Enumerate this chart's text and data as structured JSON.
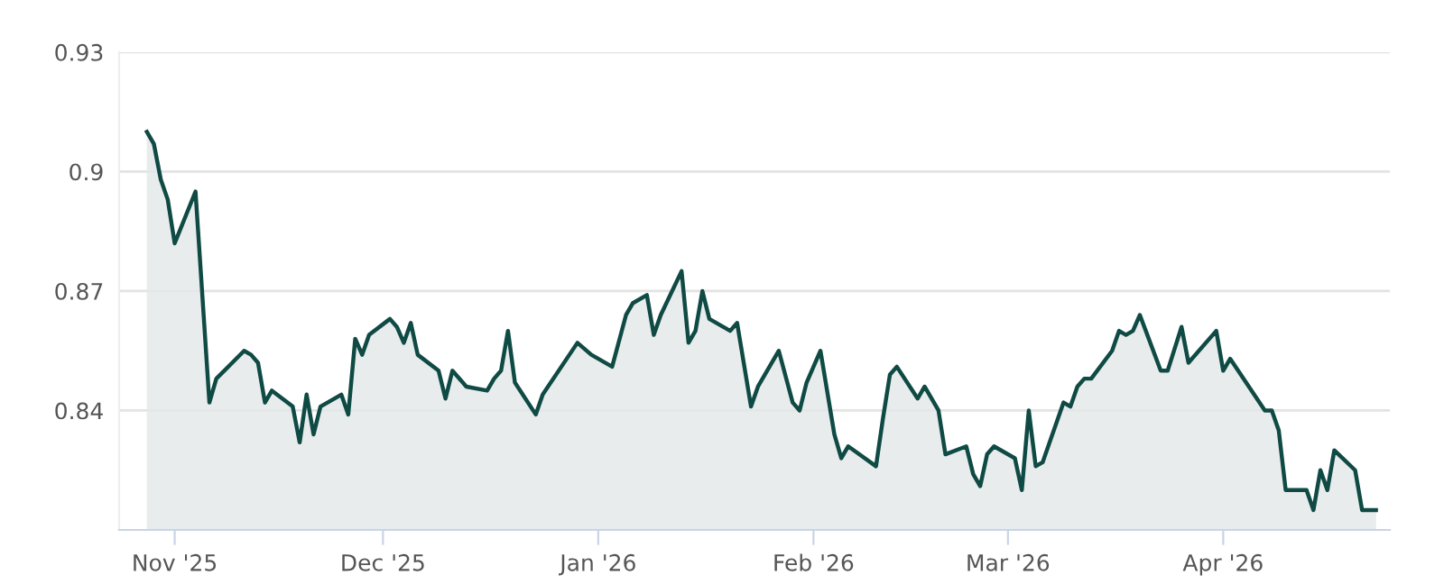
{
  "chart_data": {
    "type": "area",
    "x": [
      "2025-10-28",
      "2025-10-29",
      "2025-10-30",
      "2025-10-31",
      "2025-11-01",
      "2025-11-04",
      "2025-11-06",
      "2025-11-07",
      "2025-11-11",
      "2025-11-12",
      "2025-11-13",
      "2025-11-14",
      "2025-11-15",
      "2025-11-18",
      "2025-11-19",
      "2025-11-20",
      "2025-11-21",
      "2025-11-22",
      "2025-11-25",
      "2025-11-26",
      "2025-11-27",
      "2025-11-28",
      "2025-11-29",
      "2025-12-02",
      "2025-12-03",
      "2025-12-04",
      "2025-12-05",
      "2025-12-06",
      "2025-12-09",
      "2025-12-10",
      "2025-12-11",
      "2025-12-13",
      "2025-12-16",
      "2025-12-17",
      "2025-12-18",
      "2025-12-19",
      "2025-12-20",
      "2025-12-23",
      "2025-12-24",
      "2025-12-29",
      "2025-12-31",
      "2026-01-03",
      "2026-01-05",
      "2026-01-06",
      "2026-01-08",
      "2026-01-09",
      "2026-01-10",
      "2026-01-13",
      "2026-01-14",
      "2026-01-15",
      "2026-01-16",
      "2026-01-17",
      "2026-01-20",
      "2026-01-21",
      "2026-01-23",
      "2026-01-24",
      "2026-01-27",
      "2026-01-29",
      "2026-01-30",
      "2026-01-31",
      "2026-02-02",
      "2026-02-04",
      "2026-02-05",
      "2026-02-06",
      "2026-02-10",
      "2026-02-11",
      "2026-02-12",
      "2026-02-13",
      "2026-02-16",
      "2026-02-17",
      "2026-02-19",
      "2026-02-20",
      "2026-02-23",
      "2026-02-24",
      "2026-02-25",
      "2026-02-26",
      "2026-02-27",
      "2026-03-02",
      "2026-03-03",
      "2026-03-04",
      "2026-03-05",
      "2026-03-06",
      "2026-03-09",
      "2026-03-10",
      "2026-03-11",
      "2026-03-12",
      "2026-03-13",
      "2026-03-16",
      "2026-03-17",
      "2026-03-18",
      "2026-03-19",
      "2026-03-20",
      "2026-03-23",
      "2026-03-24",
      "2026-03-26",
      "2026-03-27",
      "2026-03-31",
      "2026-04-01",
      "2026-04-02",
      "2026-04-07",
      "2026-04-08",
      "2026-04-09",
      "2026-04-10",
      "2026-04-13",
      "2026-04-14",
      "2026-04-15",
      "2026-04-16",
      "2026-04-17",
      "2026-04-20",
      "2026-04-21",
      "2026-04-23"
    ],
    "series": [
      {
        "color": "#0f4a44",
        "values": [
          0.91,
          0.907,
          0.898,
          0.893,
          0.882,
          0.895,
          0.842,
          0.848,
          0.855,
          0.854,
          0.852,
          0.842,
          0.845,
          0.841,
          0.832,
          0.844,
          0.834,
          0.841,
          0.844,
          0.839,
          0.858,
          0.854,
          0.859,
          0.863,
          0.861,
          0.857,
          0.862,
          0.854,
          0.85,
          0.843,
          0.85,
          0.846,
          0.845,
          0.848,
          0.85,
          0.86,
          0.847,
          0.839,
          0.844,
          0.857,
          0.854,
          0.851,
          0.864,
          0.867,
          0.869,
          0.859,
          0.864,
          0.875,
          0.857,
          0.86,
          0.87,
          0.863,
          0.86,
          0.862,
          0.841,
          0.846,
          0.855,
          0.842,
          0.84,
          0.847,
          0.855,
          0.834,
          0.828,
          0.831,
          0.826,
          0.838,
          0.849,
          0.851,
          0.843,
          0.846,
          0.84,
          0.829,
          0.831,
          0.824,
          0.821,
          0.829,
          0.831,
          0.828,
          0.82,
          0.84,
          0.826,
          0.827,
          0.842,
          0.841,
          0.846,
          0.848,
          0.848,
          0.855,
          0.86,
          0.859,
          0.86,
          0.864,
          0.85,
          0.85,
          0.861,
          0.852,
          0.86,
          0.85,
          0.853,
          0.84,
          0.84,
          0.835,
          0.82,
          0.82,
          0.815,
          0.825,
          0.82,
          0.83,
          0.825,
          0.815,
          0.815
        ]
      }
    ],
    "xlim": [
      "2025-10-24",
      "2026-04-25"
    ],
    "xticks": [
      {
        "value": "2025-11-01",
        "label": "Nov '25"
      },
      {
        "value": "2025-12-01",
        "label": "Dec '25"
      },
      {
        "value": "2026-01-01",
        "label": "Jan '26"
      },
      {
        "value": "2026-02-01",
        "label": "Feb '26"
      },
      {
        "value": "2026-03-01",
        "label": "Mar '26"
      },
      {
        "value": "2026-04-01",
        "label": "Apr '26"
      }
    ],
    "ylim": [
      0.81,
      0.93
    ],
    "yticks": [
      0.84,
      0.87,
      0.9,
      0.93
    ],
    "grid": "y",
    "marker": "none",
    "line_style": "solid"
  }
}
